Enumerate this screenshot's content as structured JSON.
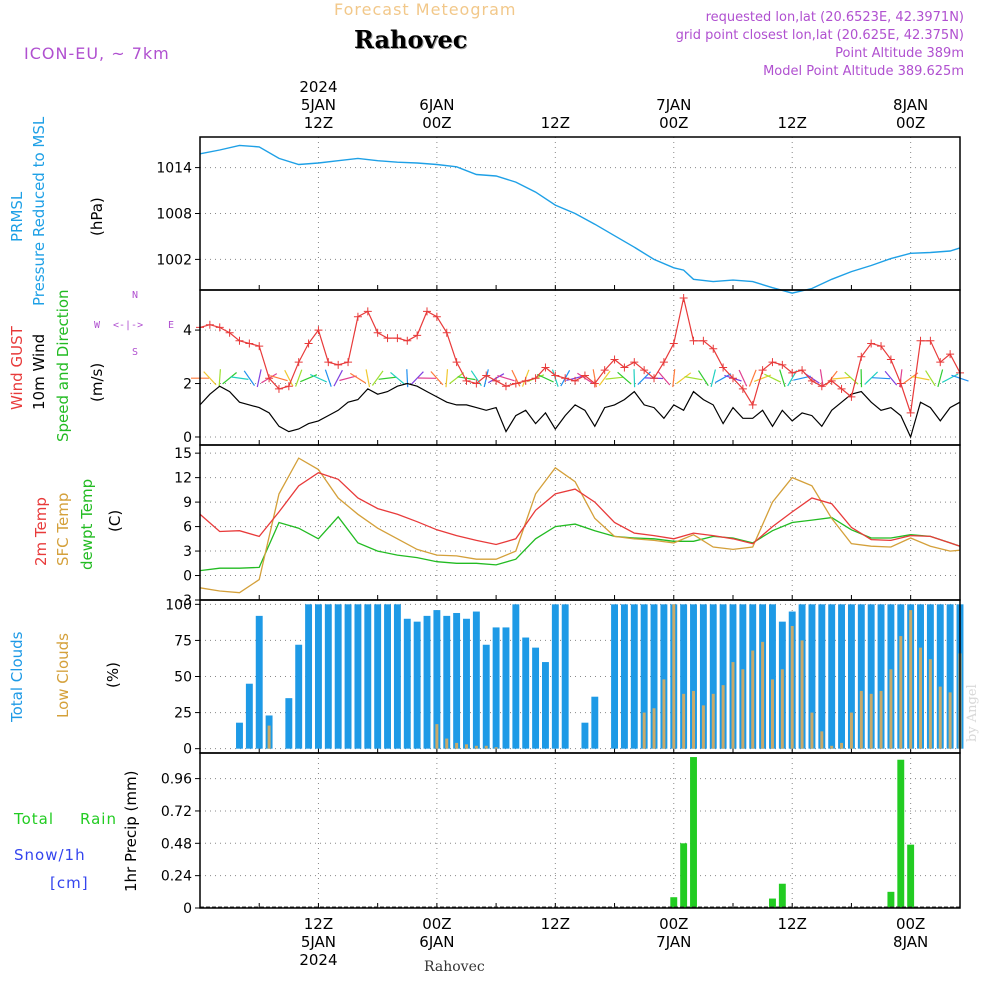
{
  "header": {
    "product": "Forecast Meteogram",
    "location": "Rahovec",
    "model": "ICON-EU, ~ 7km",
    "requested": "requested lon,lat (20.6523E, 42.3971N)",
    "gridpoint": "grid point closest lon,lat (20.625E, 42.375N)",
    "altitude": "Point Altitude 389m",
    "model_altitude": "Model Point Altitude 389.625m",
    "footer_location": "Rahovec",
    "credit": "by Angel"
  },
  "colors": {
    "pressure": "#1ea0e6",
    "gust": "#e83a3a",
    "wind": "#000000",
    "direction": "#22bb22",
    "temp": "#e83a3a",
    "sfc": "#d4a03a",
    "dewpt": "#22bb22",
    "total_clouds": "#1e9ae6",
    "low_clouds": "#c8aa6a",
    "rain": "#22cc22",
    "snow": "#3344ee",
    "purple": "#b050d0"
  },
  "time_axis": {
    "start_hour": 0,
    "end_hour": 77,
    "top_labels": [
      {
        "hour": 12,
        "lines": [
          "2024",
          "5JAN",
          "12Z"
        ]
      },
      {
        "hour": 24,
        "lines": [
          "6JAN",
          "00Z"
        ]
      },
      {
        "hour": 36,
        "lines": [
          "12Z"
        ]
      },
      {
        "hour": 48,
        "lines": [
          "7JAN",
          "00Z"
        ]
      },
      {
        "hour": 60,
        "lines": [
          "12Z"
        ]
      },
      {
        "hour": 72,
        "lines": [
          "8JAN",
          "00Z"
        ]
      }
    ],
    "bottom_labels": [
      {
        "hour": 12,
        "lines": [
          "12Z",
          "5JAN",
          "2024"
        ]
      },
      {
        "hour": 24,
        "lines": [
          "00Z",
          "6JAN"
        ]
      },
      {
        "hour": 36,
        "lines": [
          "12Z"
        ]
      },
      {
        "hour": 48,
        "lines": [
          "00Z",
          "7JAN"
        ]
      },
      {
        "hour": 60,
        "lines": [
          "12Z"
        ]
      },
      {
        "hour": 72,
        "lines": [
          "00Z",
          "8JAN"
        ]
      }
    ]
  },
  "panels": {
    "pressure": {
      "label1": "PRMSL",
      "label2": "Pressure Reduced to MSL",
      "unit": "(hPa)"
    },
    "wind": {
      "label1": "Wind GUST",
      "label2": "10m Wind",
      "label3": "Speed and Direction",
      "unit": "(m/s)",
      "compass_n": "N",
      "compass_s": "S",
      "compass_w": "W",
      "compass_e": "E",
      "compass_mid": "<-|->"
    },
    "temp": {
      "label1": "2m Temp",
      "label2": "SFC Temp",
      "label3": "dewpt Temp",
      "unit": "(C)"
    },
    "clouds": {
      "label1": "Total Clouds",
      "label2": "Low Clouds",
      "unit": "(%)"
    },
    "precip": {
      "label1": "Total",
      "label1b": "Rain",
      "label2": "Snow/1h",
      "label3": "[cm]",
      "ylabel": "1hr Precip (mm)"
    }
  },
  "chart_data": [
    {
      "type": "line",
      "name": "PRMSL",
      "ylabel": "(hPa)",
      "ylim": [
        998,
        1018
      ],
      "yticks": [
        1002,
        1008,
        1014
      ],
      "x": [
        0,
        2,
        4,
        6,
        8,
        10,
        12,
        14,
        16,
        18,
        20,
        22,
        24,
        26,
        28,
        30,
        32,
        34,
        36,
        38,
        40,
        42,
        44,
        46,
        48,
        49,
        50,
        52,
        54,
        56,
        58,
        60,
        62,
        64,
        66,
        68,
        70,
        72,
        74,
        76,
        77
      ],
      "series": [
        {
          "name": "PRMSL",
          "values": [
            1015.8,
            1016.3,
            1016.9,
            1016.7,
            1015.2,
            1014.4,
            1014.6,
            1014.9,
            1015.2,
            1014.9,
            1014.7,
            1014.6,
            1014.4,
            1014.1,
            1013.1,
            1012.9,
            1012.1,
            1010.8,
            1009.1,
            1008.0,
            1006.6,
            1005.1,
            1003.6,
            1002.0,
            1000.9,
            1000.6,
            999.4,
            999.1,
            999.3,
            999.1,
            998.3,
            997.6,
            998.2,
            999.4,
            1000.4,
            1001.2,
            1002.1,
            1002.8,
            1002.9,
            1003.1,
            1003.5
          ]
        }
      ]
    },
    {
      "type": "line",
      "name": "Wind",
      "ylabel": "(m/s)",
      "ylim": [
        -0.3,
        5.5
      ],
      "yticks": [
        0,
        2,
        4
      ],
      "x": [
        0,
        1,
        2,
        3,
        4,
        5,
        6,
        7,
        8,
        9,
        10,
        11,
        12,
        13,
        14,
        15,
        16,
        17,
        18,
        19,
        20,
        21,
        22,
        23,
        24,
        25,
        26,
        27,
        28,
        29,
        30,
        31,
        32,
        33,
        34,
        35,
        36,
        37,
        38,
        39,
        40,
        41,
        42,
        43,
        44,
        45,
        46,
        47,
        48,
        49,
        50,
        51,
        52,
        53,
        54,
        55,
        56,
        57,
        58,
        59,
        60,
        61,
        62,
        63,
        64,
        65,
        66,
        67,
        68,
        69,
        70,
        71,
        72,
        73,
        74,
        75,
        76,
        77
      ],
      "series": [
        {
          "name": "Wind GUST",
          "values": [
            4.1,
            4.2,
            4.1,
            3.9,
            3.6,
            3.5,
            3.4,
            2.2,
            1.8,
            1.9,
            2.8,
            3.5,
            4.0,
            2.8,
            2.7,
            2.8,
            4.5,
            4.7,
            3.9,
            3.7,
            3.7,
            3.6,
            3.8,
            4.7,
            4.5,
            3.9,
            2.8,
            2.1,
            2.0,
            2.3,
            2.1,
            1.9,
            2.0,
            2.1,
            2.2,
            2.6,
            2.3,
            2.2,
            2.1,
            2.3,
            2.0,
            2.5,
            2.9,
            2.6,
            2.8,
            2.5,
            2.2,
            2.8,
            3.5,
            5.2,
            3.6,
            3.6,
            3.3,
            2.6,
            2.2,
            1.8,
            1.2,
            2.5,
            2.8,
            2.7,
            2.4,
            2.5,
            2.1,
            1.9,
            2.1,
            1.8,
            1.5,
            3.0,
            3.5,
            3.4,
            2.9,
            2.0,
            0.9,
            3.6,
            3.6,
            2.8,
            3.1,
            2.4
          ]
        },
        {
          "name": "10m Wind",
          "values": [
            1.2,
            1.6,
            1.9,
            1.7,
            1.3,
            1.2,
            1.1,
            0.9,
            0.4,
            0.2,
            0.3,
            0.5,
            0.6,
            0.8,
            1.0,
            1.3,
            1.4,
            1.8,
            1.6,
            1.7,
            1.9,
            2.0,
            1.9,
            1.7,
            1.5,
            1.3,
            1.2,
            1.2,
            1.1,
            1.0,
            1.1,
            0.2,
            0.8,
            1.0,
            0.5,
            0.9,
            0.3,
            0.8,
            1.2,
            1.0,
            0.4,
            1.1,
            1.2,
            1.4,
            1.7,
            1.2,
            1.1,
            0.7,
            1.2,
            1.0,
            1.7,
            1.4,
            1.2,
            0.5,
            1.1,
            0.7,
            0.7,
            1.0,
            0.4,
            1.0,
            0.6,
            0.9,
            0.8,
            0.4,
            1.0,
            1.3,
            1.6,
            1.7,
            1.3,
            1.0,
            1.1,
            0.8,
            0.0,
            1.3,
            1.1,
            0.6,
            1.1,
            1.3
          ]
        }
      ]
    },
    {
      "type": "line",
      "name": "Temperature",
      "ylabel": "(C)",
      "ylim": [
        -3,
        16
      ],
      "yticks": [
        -3,
        0,
        3,
        6,
        9,
        12,
        15
      ],
      "x": [
        0,
        2,
        4,
        6,
        8,
        10,
        12,
        14,
        16,
        18,
        20,
        22,
        24,
        26,
        28,
        30,
        32,
        34,
        36,
        38,
        40,
        42,
        44,
        46,
        48,
        50,
        52,
        54,
        56,
        58,
        60,
        62,
        64,
        66,
        68,
        70,
        72,
        74,
        76,
        77
      ],
      "series": [
        {
          "name": "2m Temp",
          "values": [
            7.5,
            5.4,
            5.5,
            4.8,
            7.8,
            11.0,
            12.6,
            11.8,
            9.5,
            8.2,
            7.5,
            6.6,
            5.6,
            4.9,
            4.3,
            3.8,
            4.5,
            8.0,
            10.0,
            10.6,
            9.0,
            6.5,
            5.2,
            4.9,
            4.5,
            5.2,
            4.9,
            4.5,
            3.9,
            6.0,
            7.8,
            9.5,
            8.8,
            5.9,
            4.4,
            4.3,
            4.9,
            4.8,
            4.0,
            3.6
          ]
        },
        {
          "name": "SFC Temp",
          "values": [
            -1.5,
            -1.9,
            -2.1,
            -0.5,
            10.0,
            14.4,
            13.0,
            9.5,
            7.5,
            5.8,
            4.5,
            3.2,
            2.5,
            2.4,
            2.0,
            2.0,
            3.0,
            10.0,
            13.2,
            11.5,
            7.0,
            4.8,
            4.5,
            4.3,
            4.0,
            5.0,
            3.5,
            3.2,
            3.5,
            9.0,
            12.0,
            11.0,
            7.0,
            3.9,
            3.6,
            3.5,
            4.6,
            3.6,
            3.0,
            3.1
          ]
        },
        {
          "name": "dewpt Temp",
          "values": [
            0.6,
            0.9,
            0.9,
            1.0,
            6.5,
            5.8,
            4.5,
            7.2,
            4.0,
            3.0,
            2.5,
            2.2,
            1.7,
            1.5,
            1.5,
            1.3,
            2.0,
            4.5,
            6.0,
            6.3,
            5.5,
            4.8,
            4.6,
            4.5,
            4.2,
            4.2,
            4.8,
            4.6,
            4.0,
            5.5,
            6.5,
            6.8,
            7.1,
            5.6,
            4.6,
            4.6,
            5.0,
            4.8,
            4.0,
            3.6
          ]
        }
      ]
    },
    {
      "type": "bar",
      "name": "Clouds",
      "ylabel": "(%)",
      "ylim": [
        -3,
        103
      ],
      "yticks": [
        0,
        25,
        50,
        75,
        100
      ],
      "x": [
        0,
        1,
        2,
        3,
        4,
        5,
        6,
        7,
        8,
        9,
        10,
        11,
        12,
        13,
        14,
        15,
        16,
        17,
        18,
        19,
        20,
        21,
        22,
        23,
        24,
        25,
        26,
        27,
        28,
        29,
        30,
        31,
        32,
        33,
        34,
        35,
        36,
        37,
        38,
        39,
        40,
        41,
        42,
        43,
        44,
        45,
        46,
        47,
        48,
        49,
        50,
        51,
        52,
        53,
        54,
        55,
        56,
        57,
        58,
        59,
        60,
        61,
        62,
        63,
        64,
        65,
        66,
        67,
        68,
        69,
        70,
        71,
        72,
        73,
        74,
        75,
        76,
        77
      ],
      "series": [
        {
          "name": "Total Clouds",
          "values": [
            0,
            0,
            0,
            0,
            18,
            45,
            92,
            23,
            0,
            35,
            72,
            100,
            100,
            100,
            100,
            100,
            100,
            100,
            100,
            100,
            100,
            90,
            88,
            92,
            96,
            92,
            94,
            90,
            95,
            72,
            84,
            84,
            100,
            77,
            70,
            60,
            100,
            100,
            0,
            18,
            36,
            0,
            100,
            100,
            100,
            100,
            100,
            100,
            100,
            100,
            100,
            100,
            100,
            100,
            100,
            100,
            100,
            100,
            100,
            88,
            95,
            100,
            100,
            100,
            100,
            100,
            100,
            100,
            100,
            100,
            100,
            100,
            100,
            100,
            100,
            100,
            100,
            100
          ]
        },
        {
          "name": "Low Clouds",
          "values": [
            0,
            0,
            0,
            0,
            0,
            0,
            0,
            16,
            0,
            0,
            0,
            0,
            0,
            0,
            0,
            0,
            0,
            0,
            0,
            0,
            0,
            0,
            0,
            0,
            17,
            7,
            4,
            3,
            2,
            2,
            1,
            0,
            0,
            0,
            0,
            0,
            0,
            0,
            0,
            0,
            0,
            0,
            0,
            0,
            0,
            25,
            28,
            48,
            100,
            38,
            40,
            30,
            38,
            44,
            60,
            55,
            68,
            74,
            48,
            55,
            85,
            75,
            25,
            12,
            2,
            4,
            25,
            40,
            38,
            40,
            55,
            78,
            96,
            70,
            62,
            43,
            39,
            66
          ]
        }
      ]
    },
    {
      "type": "bar",
      "name": "Precipitation",
      "ylabel": "1hr Precip (mm)",
      "ylim": [
        0,
        1.15
      ],
      "yticks": [
        0,
        0.24,
        0.48,
        0.72,
        0.96
      ],
      "x": [
        48,
        49,
        50,
        58,
        59,
        70,
        71,
        72
      ],
      "series": [
        {
          "name": "Total Rain",
          "values": [
            0.08,
            0.48,
            1.12,
            0.07,
            0.18,
            0.12,
            1.1,
            0.47
          ]
        }
      ]
    }
  ]
}
